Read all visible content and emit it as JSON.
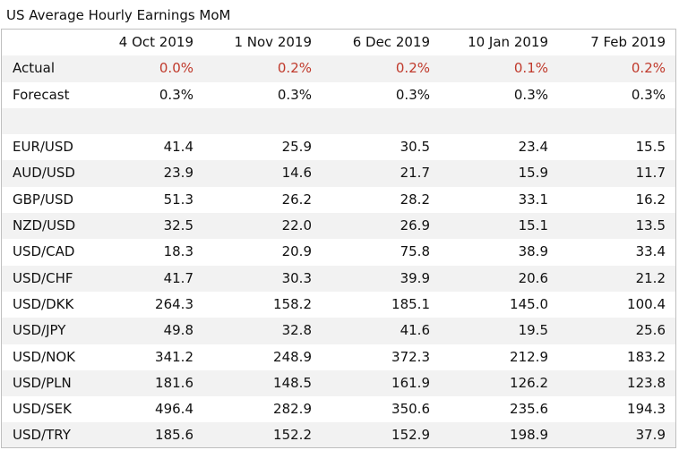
{
  "title": "US Average Hourly Earnings MoM",
  "columns": [
    "",
    "4 Oct 2019",
    "1 Nov 2019",
    "6 Dec 2019",
    "10 Jan 2019",
    "7 Feb 2019"
  ],
  "actual": {
    "label": "Actual",
    "values": [
      "0.0%",
      "0.2%",
      "0.2%",
      "0.1%",
      "0.2%"
    ],
    "color": "#c0392b"
  },
  "forecast": {
    "label": "Forecast",
    "values": [
      "0.3%",
      "0.3%",
      "0.3%",
      "0.3%",
      "0.3%"
    ]
  },
  "pairs": [
    {
      "pair": "EUR/USD",
      "values": [
        "41.4",
        "25.9",
        "30.5",
        "23.4",
        "15.5"
      ]
    },
    {
      "pair": "AUD/USD",
      "values": [
        "23.9",
        "14.6",
        "21.7",
        "15.9",
        "11.7"
      ]
    },
    {
      "pair": "GBP/USD",
      "values": [
        "51.3",
        "26.2",
        "28.2",
        "33.1",
        "16.2"
      ]
    },
    {
      "pair": "NZD/USD",
      "values": [
        "32.5",
        "22.0",
        "26.9",
        "15.1",
        "13.5"
      ]
    },
    {
      "pair": "USD/CAD",
      "values": [
        "18.3",
        "20.9",
        "75.8",
        "38.9",
        "33.4"
      ]
    },
    {
      "pair": "USD/CHF",
      "values": [
        "41.7",
        "30.3",
        "39.9",
        "20.6",
        "21.2"
      ]
    },
    {
      "pair": "USD/DKK",
      "values": [
        "264.3",
        "158.2",
        "185.1",
        "145.0",
        "100.4"
      ]
    },
    {
      "pair": "USD/JPY",
      "values": [
        "49.8",
        "32.8",
        "41.6",
        "19.5",
        "25.6"
      ]
    },
    {
      "pair": "USD/NOK",
      "values": [
        "341.2",
        "248.9",
        "372.3",
        "212.9",
        "183.2"
      ]
    },
    {
      "pair": "USD/PLN",
      "values": [
        "181.6",
        "148.5",
        "161.9",
        "126.2",
        "123.8"
      ]
    },
    {
      "pair": "USD/SEK",
      "values": [
        "496.4",
        "282.9",
        "350.6",
        "235.6",
        "194.3"
      ]
    },
    {
      "pair": "USD/TRY",
      "values": [
        "185.6",
        "152.2",
        "152.9",
        "198.9",
        "37.9"
      ]
    }
  ]
}
